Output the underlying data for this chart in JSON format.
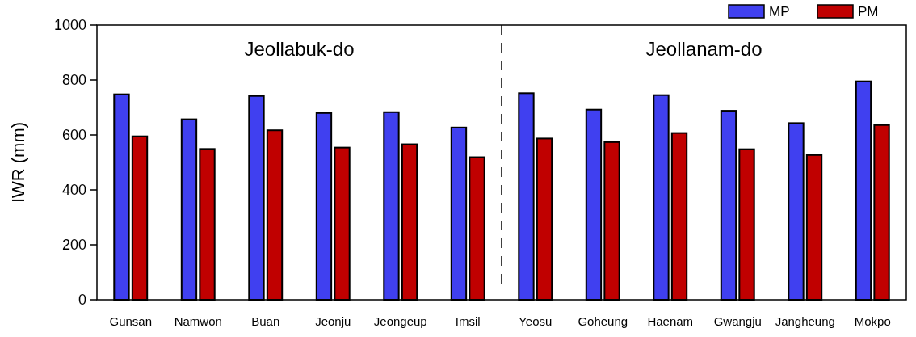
{
  "chart_data": {
    "type": "bar",
    "ylabel": "IWR (mm)",
    "categories": [
      "Gunsan",
      "Namwon",
      "Buan",
      "Jeonju",
      "Jeongeup",
      "Imsil",
      "Yeosu",
      "Goheung",
      "Haenam",
      "Gwangju",
      "Jangheung",
      "Mokpo"
    ],
    "series": [
      {
        "name": "MP",
        "color": "#4040f0",
        "values": [
          748,
          657,
          742,
          680,
          683,
          627,
          752,
          692,
          745,
          688,
          643,
          795
        ]
      },
      {
        "name": "PM",
        "color": "#c00000",
        "values": [
          595,
          549,
          617,
          554,
          566,
          519,
          587,
          574,
          607,
          548,
          527,
          636
        ]
      }
    ],
    "ylim": [
      0,
      1000
    ],
    "yticks": [
      0,
      200,
      400,
      600,
      800,
      1000
    ],
    "annotations": [
      "Jeollabuk-do",
      "Jeollanam-do"
    ],
    "legend": "top right",
    "grid": false
  }
}
